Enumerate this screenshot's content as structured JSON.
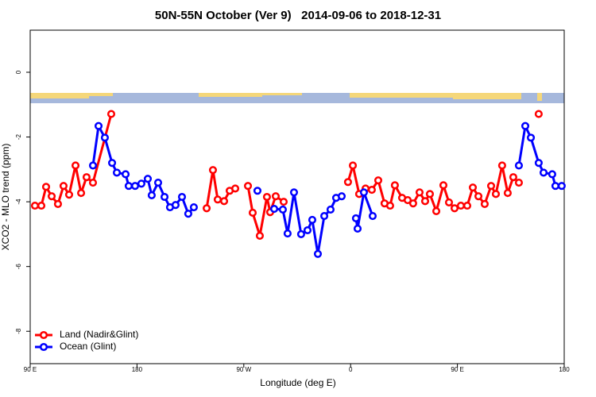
{
  "chart_data": {
    "type": "line",
    "title": "50N-55N October (Ver 9)   2014-09-06 to 2018-12-31",
    "x_label": "Longitude (deg E)",
    "y_label": "XCO2 - MLO trend (ppm)",
    "xlim": [
      90,
      540
    ],
    "ylim": [
      -9,
      1.3
    ],
    "xticks": [
      {
        "value": 90,
        "label": "90 E"
      },
      {
        "value": 180,
        "label": "180"
      },
      {
        "value": 270,
        "label": "90 W"
      },
      {
        "value": 360,
        "label": "0"
      },
      {
        "value": 450,
        "label": "90 E"
      },
      {
        "value": 540,
        "label": "180"
      }
    ],
    "yticks": [
      0,
      -2,
      -4,
      -6,
      -8
    ],
    "legend": "bottom-left",
    "series": [
      {
        "name": "Land (Nadir&Glint)",
        "color": "#ff0000",
        "x": [
          94.0,
          99.4,
          103.4,
          108.1,
          113.4,
          118.1,
          122.8,
          128.2,
          132.9,
          137.5,
          142.9,
          158.3,
          null,
          238.7,
          244.0,
          248.0,
          253.4,
          258.1,
          262.8,
          null,
          273.5,
          277.5,
          283.5,
          289.5,
          292.2,
          296.9,
          303.6,
          null,
          357.8,
          361.9,
          367.2,
          372.6,
          377.9,
          383.3,
          388.6,
          393.3,
          397.3,
          403.4,
          408.1,
          412.7,
          418.1,
          422.8,
          426.8,
          432.2,
          438.2,
          442.9,
          447.6,
          452.9,
          458.3,
          463.0,
          467.7,
          473.0,
          478.4,
          482.4,
          487.7,
          492.4,
          497.1,
          501.8,
          null,
          518.5
        ],
        "values": [
          -4.12,
          -4.12,
          -3.54,
          -3.83,
          -4.07,
          -3.51,
          -3.78,
          -2.88,
          -3.73,
          -3.24,
          -3.41,
          -1.29,
          null,
          -4.2,
          -3.02,
          -3.93,
          -3.98,
          -3.66,
          -3.59,
          null,
          -3.51,
          -4.34,
          -5.05,
          -3.85,
          -4.32,
          -3.83,
          -4.0,
          null,
          -3.39,
          -2.88,
          -3.76,
          -3.59,
          -3.63,
          -3.34,
          -4.05,
          -4.12,
          -3.49,
          -3.88,
          -3.95,
          -4.05,
          -3.71,
          -3.98,
          -3.76,
          -4.29,
          -3.49,
          -4.02,
          -4.2,
          -4.12,
          -4.12,
          -3.56,
          -3.83,
          -4.07,
          -3.51,
          -3.76,
          -2.88,
          -3.73,
          -3.24,
          -3.41,
          null,
          -1.29
        ]
      },
      {
        "name": "Ocean (Glint)",
        "color": "#0000ff",
        "x": [
          142.9,
          147.6,
          152.9,
          159.0,
          163.0,
          170.4,
          173.0,
          178.4,
          183.7,
          189.1,
          192.4,
          197.8,
          203.2,
          207.8,
          212.5,
          217.9,
          223.2,
          227.9,
          null,
          281.5,
          null,
          295.6,
          302.9,
          306.9,
          312.3,
          318.3,
          323.7,
          327.7,
          332.4,
          337.8,
          343.1,
          347.8,
          352.5,
          null,
          364.5,
          365.9,
          371.2,
          378.6,
          null,
          501.8,
          507.2,
          511.9,
          518.5,
          522.6,
          529.9,
          532.6,
          537.9
        ],
        "values": [
          -2.88,
          -1.66,
          -2.02,
          -2.8,
          -3.1,
          -3.15,
          -3.51,
          -3.51,
          -3.44,
          -3.29,
          -3.8,
          -3.41,
          -3.85,
          -4.17,
          -4.1,
          -3.85,
          -4.37,
          -4.17,
          null,
          -3.66,
          null,
          -4.22,
          -4.24,
          -4.98,
          -3.71,
          -5.0,
          -4.88,
          -4.56,
          -5.61,
          -4.44,
          -4.24,
          -3.88,
          -3.83,
          null,
          -4.51,
          -4.83,
          -3.71,
          -4.44,
          null,
          -2.88,
          -1.66,
          -2.02,
          -2.8,
          -3.1,
          -3.15,
          -3.51,
          -3.51
        ]
      }
    ]
  }
}
